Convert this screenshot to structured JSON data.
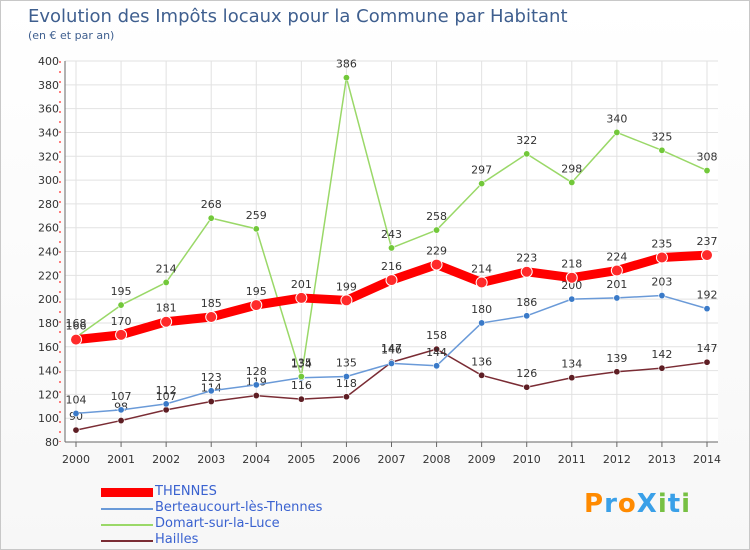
{
  "chart_data": {
    "type": "line",
    "title": "Evolution des Impôts locaux pour la Commune par Habitant",
    "subtitle": "(en € et par an)",
    "categories": [
      "2000",
      "2001",
      "2002",
      "2003",
      "2004",
      "2005",
      "2006",
      "2007",
      "2008",
      "2009",
      "2010",
      "2011",
      "2012",
      "2013",
      "2014"
    ],
    "yticks": [
      80,
      100,
      120,
      140,
      160,
      180,
      200,
      220,
      240,
      260,
      280,
      300,
      320,
      340,
      360,
      380,
      400
    ],
    "ylim": [
      80,
      400
    ],
    "grid": true,
    "series": [
      {
        "name": "Hailles",
        "color": "#7a2c34",
        "marker": "#5e1e24",
        "values": [
          90,
          98,
          107,
          114,
          119,
          116,
          118,
          147,
          158,
          136,
          126,
          134,
          139,
          142,
          147
        ]
      },
      {
        "name": "Berteaucourt-lès-Thennes",
        "color": "#6a9ad8",
        "marker": "#3a7ac8",
        "values": [
          104,
          107,
          112,
          123,
          128,
          134,
          135,
          146,
          144,
          180,
          186,
          200,
          201,
          203,
          192
        ]
      },
      {
        "name": "Domart-sur-la-Luce",
        "color": "#9ad868",
        "marker": "#72c83a",
        "values": [
          168,
          195,
          214,
          268,
          259,
          135,
          386,
          243,
          258,
          297,
          322,
          298,
          340,
          325,
          308
        ]
      },
      {
        "name": "THENNES",
        "color": "#ff0000",
        "marker": "#ff2a2a",
        "values": [
          166,
          170,
          181,
          185,
          195,
          201,
          199,
          216,
          229,
          214,
          223,
          218,
          224,
          235,
          237
        ]
      }
    ]
  },
  "legend": [
    {
      "name": "THENNES",
      "color": "#ff0000"
    },
    {
      "name": "Berteaucourt-lès-Thennes",
      "color": "#6a9ad8"
    },
    {
      "name": "Domart-sur-la-Luce",
      "color": "#9ad868"
    },
    {
      "name": "Hailles",
      "color": "#7a2c34"
    }
  ],
  "logo": {
    "text": "ProXiti"
  }
}
